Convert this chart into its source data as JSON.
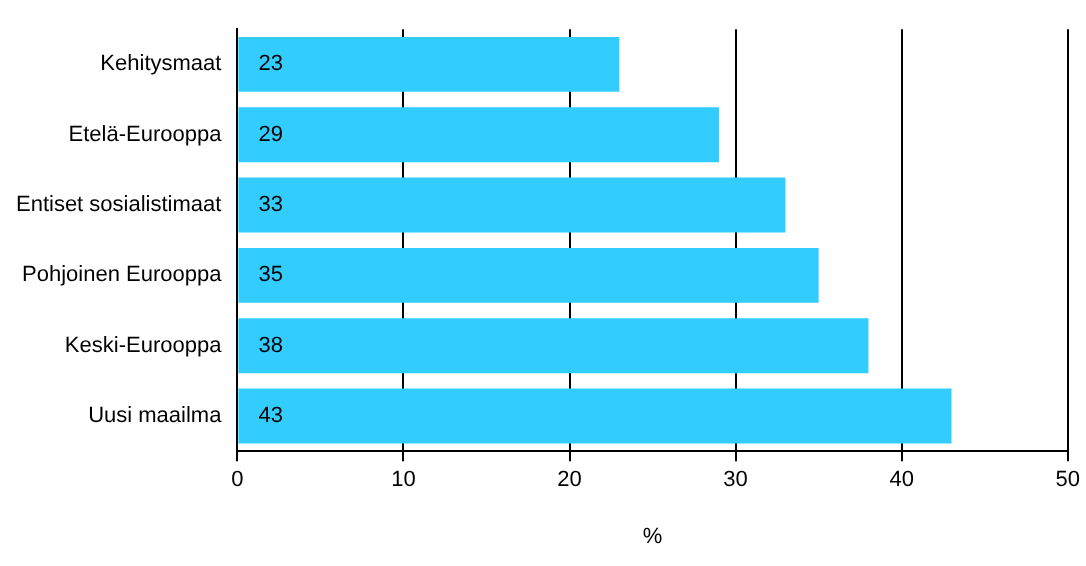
{
  "chart_data": {
    "type": "bar",
    "orientation": "horizontal",
    "categories": [
      "Kehitysmaat",
      "Etelä-Eurooppa",
      "Entiset sosialistimaat",
      "Pohjoinen Eurooppa",
      "Keski-Eurooppa",
      "Uusi maailma"
    ],
    "values": [
      23,
      29,
      33,
      35,
      38,
      43
    ],
    "color": "#33ccff",
    "xlim": [
      0,
      50
    ],
    "xticks": [
      0,
      10,
      20,
      30,
      40,
      50
    ],
    "xlabel": "%",
    "grid": "x",
    "data_labels": true,
    "legend": false
  }
}
